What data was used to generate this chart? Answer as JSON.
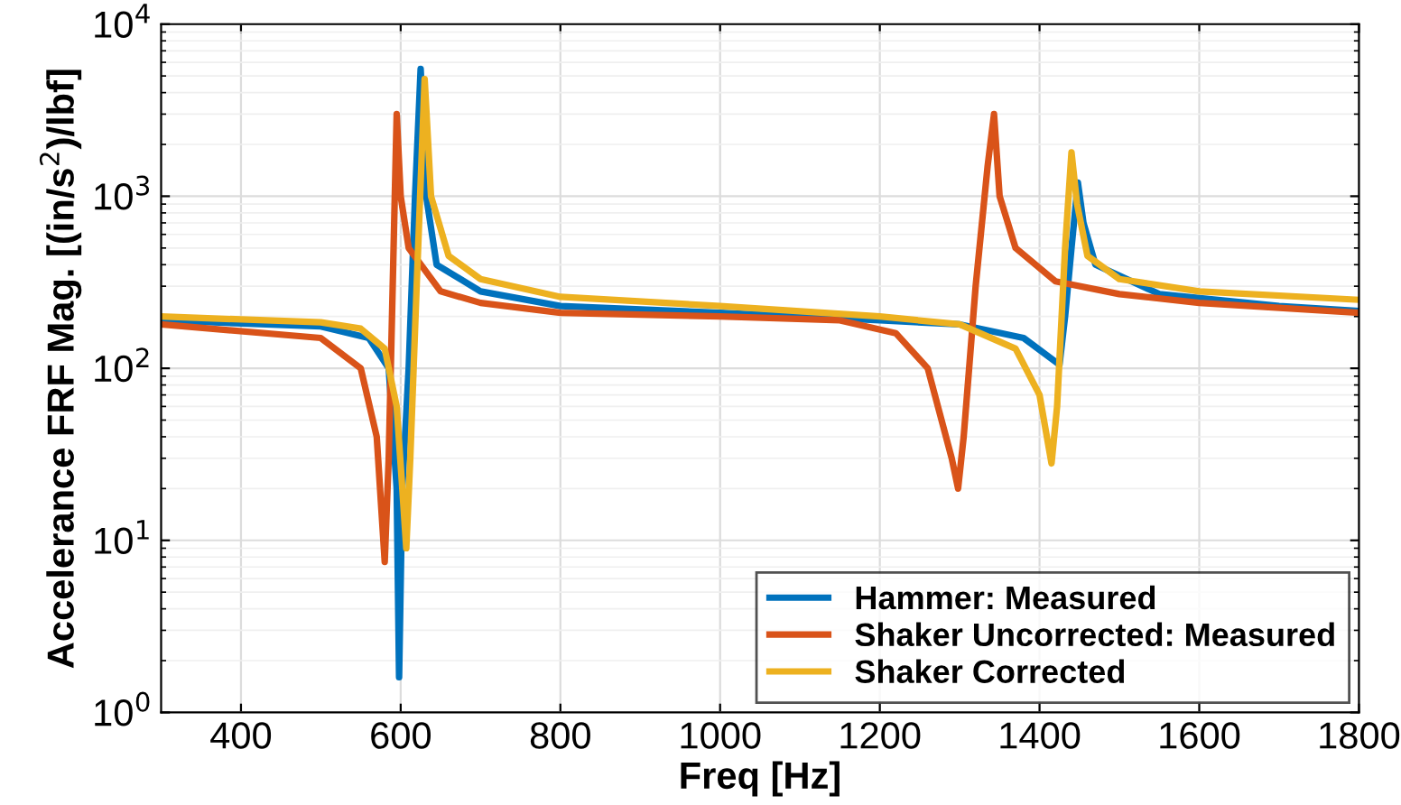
{
  "chart_data": {
    "type": "line",
    "xlabel": "Freq [Hz]",
    "ylabel": "Accelerance FRF Mag. [(in/s$^{2}$)/lbf]",
    "log": "y",
    "grid": true,
    "legend": "bottom right",
    "line_style": "solid",
    "marker": "none",
    "xlim": [
      300,
      1800
    ],
    "xticks": [
      400,
      600,
      800,
      1000,
      1200,
      1400,
      1600,
      1800
    ],
    "ylim": [
      1,
      10000
    ],
    "yticks": [
      {
        "value": 1,
        "label": "10$^{0}$"
      },
      {
        "value": 10,
        "label": "10$^{1}$"
      },
      {
        "value": 100,
        "label": "10$^{2}$"
      },
      {
        "value": 1000,
        "label": "10$^{3}$"
      },
      {
        "value": 10000,
        "label": "10$^{4}$"
      }
    ],
    "series": [
      {
        "name": "Hammer: Measured",
        "color": "#0072bd",
        "x": [
          300,
          500,
          560,
          585,
          595,
          598,
          602,
          610,
          618,
          625,
          632,
          645,
          700,
          800,
          1000,
          1200,
          1300,
          1380,
          1425,
          1432,
          1440,
          1448,
          1455,
          1470,
          1550,
          1700,
          1800
        ],
        "values": [
          190,
          175,
          150,
          100,
          20,
          1.6,
          20,
          100,
          1000,
          5500,
          1000,
          400,
          280,
          230,
          210,
          190,
          180,
          150,
          105,
          200,
          500,
          1200,
          700,
          400,
          270,
          230,
          215
        ]
      },
      {
        "name": "Shaker Uncorrected: Measured",
        "color": "#d95319",
        "x": [
          300,
          500,
          550,
          570,
          580,
          585,
          590,
          595,
          600,
          610,
          650,
          700,
          800,
          1000,
          1150,
          1220,
          1260,
          1290,
          1298,
          1305,
          1320,
          1335,
          1343,
          1350,
          1370,
          1420,
          1500,
          1600,
          1800
        ],
        "values": [
          180,
          150,
          100,
          40,
          7.5,
          30,
          300,
          3000,
          1000,
          500,
          280,
          240,
          210,
          200,
          190,
          160,
          100,
          30,
          20,
          40,
          300,
          1500,
          3000,
          1000,
          500,
          320,
          270,
          240,
          210
        ]
      },
      {
        "name": "Shaker Corrected",
        "color": "#edb120",
        "x": [
          300,
          500,
          550,
          580,
          595,
          602,
          607,
          612,
          620,
          630,
          638,
          660,
          700,
          800,
          1000,
          1200,
          1300,
          1370,
          1400,
          1415,
          1422,
          1432,
          1440,
          1447,
          1460,
          1500,
          1600,
          1800
        ],
        "values": [
          200,
          185,
          170,
          130,
          60,
          20,
          9,
          30,
          300,
          4800,
          1000,
          450,
          330,
          260,
          230,
          200,
          180,
          130,
          70,
          28,
          60,
          500,
          1800,
          900,
          450,
          330,
          280,
          250
        ]
      }
    ]
  }
}
